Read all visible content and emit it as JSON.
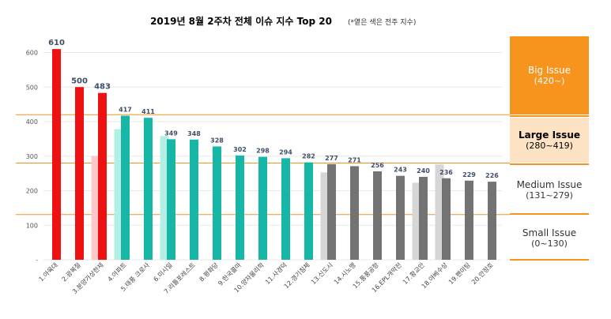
{
  "chart_data": {
    "type": "bar",
    "title": "2019년 8월 2주차 전체 이슈 지수 Top 20",
    "subtitle": "(*옅은 색은 전주 지수)",
    "categories": [
      "1.아육대",
      "2.광복절",
      "3.분양가상한제",
      "4.아파트",
      "5.태풍 크로사",
      "6.미시일",
      "7.리틀포레스트",
      "8.평화당",
      "9.한국콜마",
      "10.양자물리학",
      "11.사경덕",
      "12.경기침체",
      "13.신도시",
      "14.시노맹",
      "15.통풍공항",
      "16.EPL개막전",
      "17.황교안",
      "18.아베수상",
      "19.팬미팅",
      "20.안정호"
    ],
    "series": [
      {
        "values": [
          0,
          0,
          300,
          378,
          0,
          358,
          0,
          0,
          0,
          0,
          0,
          0,
          253,
          0,
          0,
          0,
          223,
          276,
          0,
          0
        ]
      },
      {
        "values": [
          610,
          500,
          483,
          417,
          411,
          349,
          348,
          328,
          302,
          298,
          294,
          282,
          277,
          271,
          256,
          243,
          240,
          236,
          229,
          226
        ]
      }
    ],
    "data_labels": [
      "610",
      "500",
      "483",
      "417",
      "411",
      "349",
      "348",
      "328",
      "302",
      "298",
      "294",
      "282",
      "277",
      "271",
      "256",
      "243",
      "240",
      "236",
      "229",
      "226"
    ],
    "yticks": [
      "-",
      "100",
      "200",
      "300",
      "400",
      "500",
      "600"
    ],
    "ylim": [
      0,
      640
    ],
    "thresholds": [
      420,
      280,
      131
    ],
    "colors": {
      "big": "#ee1111",
      "large": "#16b7a6",
      "large_prev": "#b4efe6",
      "medium": "#737373",
      "medium_prev": "#d6d6d6",
      "orange": "#f7941d",
      "label": "#3f4e68"
    }
  },
  "bands": [
    {
      "name": "Big Issue",
      "range": "(420~)"
    },
    {
      "name": "Large Issue",
      "range": "(280~419)"
    },
    {
      "name": "Medium Issue",
      "range": "(131~279)"
    },
    {
      "name": "Small Issue",
      "range": "(0~130)"
    }
  ]
}
